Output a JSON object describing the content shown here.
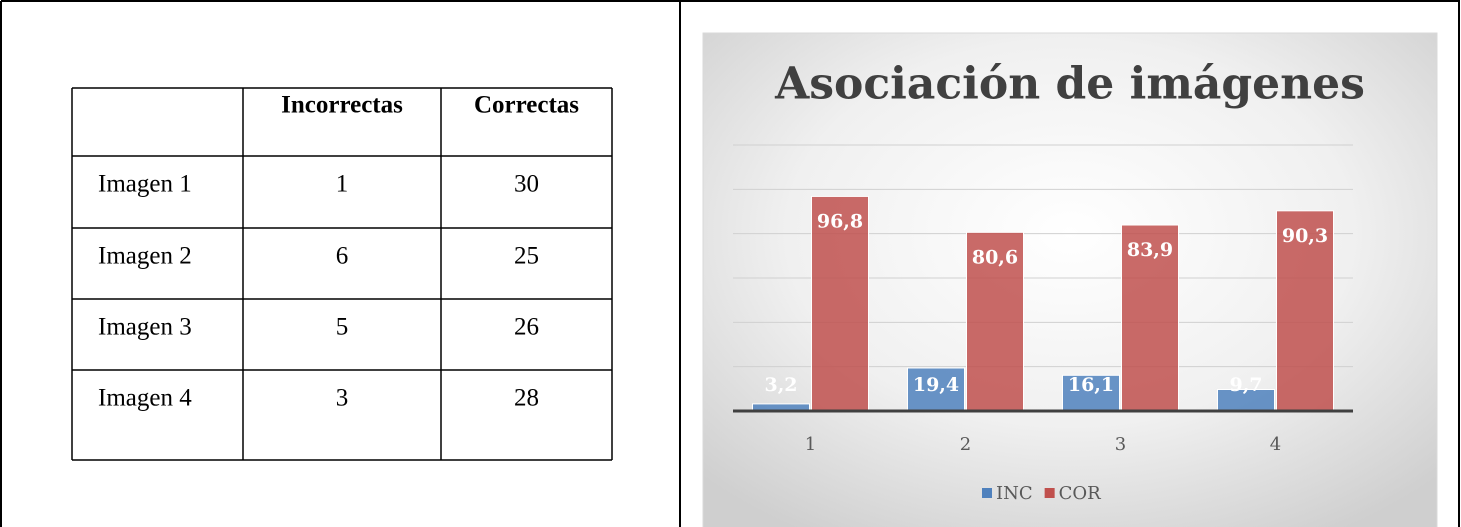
{
  "table": {
    "header": [
      "Incorrectas",
      "Correctas"
    ],
    "rows": [
      [
        "Imagen 1",
        1,
        30
      ],
      [
        "Imagen 2",
        6,
        25
      ],
      [
        "Imagen 3",
        5,
        26
      ],
      [
        "Imagen 4",
        3,
        28
      ]
    ]
  },
  "chart_data": {
    "type": "bar",
    "title": "Asociación de imágenes",
    "categories": [
      "1",
      "2",
      "3",
      "4"
    ],
    "series": [
      {
        "name": "INC",
        "color": "#4f81bd",
        "values": [
          3.2,
          19.4,
          16.1,
          9.7
        ],
        "value_labels": [
          "3,2",
          "19,4",
          "16,1",
          "9,7"
        ]
      },
      {
        "name": "COR",
        "color": "#c0504d",
        "values": [
          96.8,
          80.6,
          83.9,
          90.3
        ],
        "value_labels": [
          "96,8",
          "80,6",
          "83,9",
          "90,3"
        ]
      }
    ],
    "ylim": [
      0,
      120
    ],
    "yticks": [
      0,
      20,
      40,
      60,
      80,
      100,
      120
    ],
    "grid": true,
    "legend": "bottom"
  }
}
